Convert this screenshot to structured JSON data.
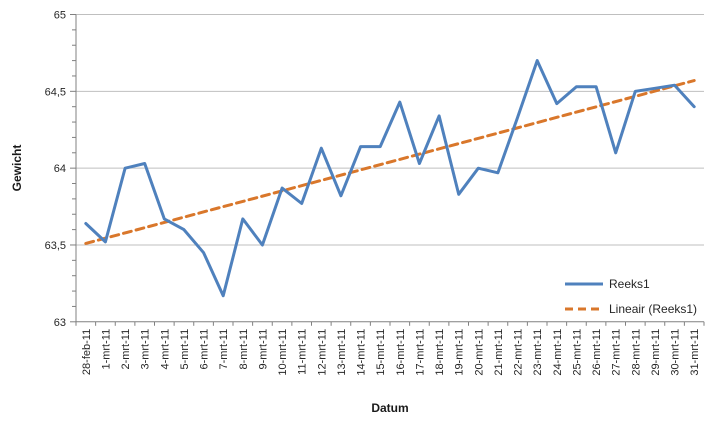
{
  "chart_data": {
    "type": "line",
    "xlabel": "Datum",
    "ylabel": "Gewicht",
    "categories": [
      "28-feb-11",
      "1-mrt-11",
      "2-mrt-11",
      "3-mrt-11",
      "4-mrt-11",
      "5-mrt-11",
      "6-mrt-11",
      "7-mrt-11",
      "8-mrt-11",
      "9-mrt-11",
      "10-mrt-11",
      "11-mrt-11",
      "12-mrt-11",
      "13-mrt-11",
      "14-mrt-11",
      "15-mrt-11",
      "16-mrt-11",
      "17-mrt-11",
      "18-mrt-11",
      "19-mrt-11",
      "20-mrt-11",
      "21-mrt-11",
      "22-mrt-11",
      "23-mrt-11",
      "24-mrt-11",
      "25-mrt-11",
      "26-mrt-11",
      "27-mrt-11",
      "28-mrt-11",
      "29-mrt-11",
      "30-mrt-11",
      "31-mrt-11"
    ],
    "series": [
      {
        "name": "Reeks1",
        "color": "#4F81BD",
        "line_style": "solid",
        "values": [
          63.64,
          63.52,
          64.0,
          64.03,
          63.67,
          63.6,
          63.45,
          63.17,
          63.67,
          63.5,
          63.87,
          63.77,
          64.13,
          63.82,
          64.14,
          64.14,
          64.43,
          64.03,
          64.34,
          63.83,
          64.0,
          63.97,
          64.33,
          64.7,
          64.42,
          64.53,
          64.53,
          64.1,
          64.5,
          64.52,
          64.54,
          64.4
        ]
      },
      {
        "name": "Lineair (Reeks1)",
        "color": "#D9772B",
        "line_style": "dashed",
        "kind": "trendline",
        "start_value": 63.51,
        "end_value": 64.57
      }
    ],
    "ylim": [
      63,
      65
    ],
    "ytick_step": 0.5,
    "ytick_labels": [
      "63",
      "63,5",
      "64",
      "64,5",
      "65"
    ],
    "y_minor_tick_step": 0.1,
    "grid": true,
    "legend_position": "inside-bottom-right",
    "x_labels_rotated_degrees": 90,
    "colors": {
      "gridline": "#BFBFBF",
      "axis": "#808080",
      "tick_text": "#262626"
    }
  }
}
